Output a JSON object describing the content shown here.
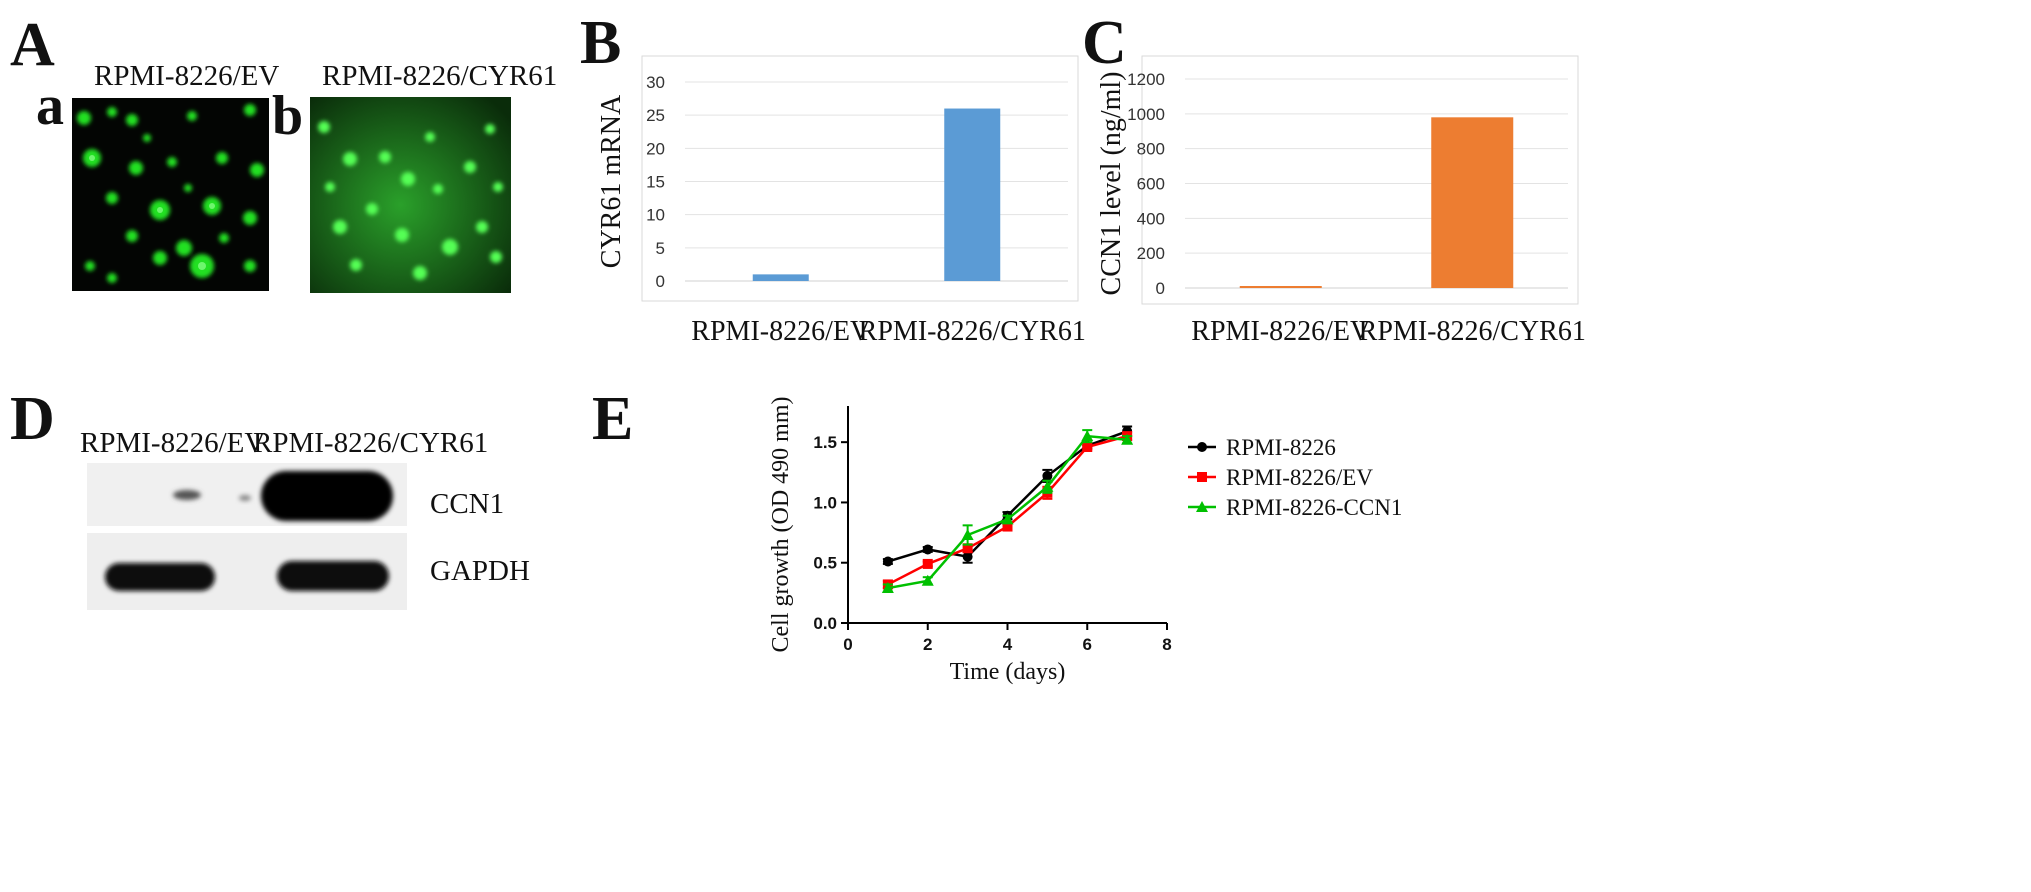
{
  "panels": {
    "A": {
      "letter": "A",
      "sub_a": {
        "letter": "a",
        "caption": "RPMI-8226/EV"
      },
      "sub_b": {
        "letter": "b",
        "caption": "RPMI-8226/CYR61"
      }
    },
    "B": {
      "letter": "B"
    },
    "C": {
      "letter": "C"
    },
    "D": {
      "letter": "D",
      "lane_labels": [
        "RPMI-8226/EV",
        "RPMI-8226/CYR61"
      ],
      "band_labels": [
        "CCN1",
        "GAPDH"
      ]
    },
    "E": {
      "letter": "E"
    }
  },
  "chart_data": [
    {
      "id": "B",
      "type": "bar",
      "categories": [
        "RPMI-8226/EV",
        "RPMI-8226/CYR61"
      ],
      "values": [
        1,
        26
      ],
      "ylabel": "CYR61 mRNA",
      "ylim": [
        0,
        30
      ],
      "yticks": [
        0,
        5,
        10,
        15,
        20,
        25,
        30
      ],
      "grid": true,
      "color": "#5b9bd5"
    },
    {
      "id": "C",
      "type": "bar",
      "categories": [
        "RPMI-8226/EV",
        "RPMI-8226/CYR61"
      ],
      "values": [
        10,
        980
      ],
      "ylabel": "CCN1 level (ng/ml)",
      "ylim": [
        0,
        1200
      ],
      "yticks": [
        0,
        200,
        400,
        600,
        800,
        1000,
        1200
      ],
      "grid": true,
      "color": "#ed7d31"
    },
    {
      "id": "E",
      "type": "line",
      "xlabel": "Time (days)",
      "ylabel": "Cell growth (OD 490 mm)",
      "xlim": [
        0,
        8
      ],
      "ylim": [
        0,
        1.8
      ],
      "xticks": [
        0,
        2,
        4,
        6,
        8
      ],
      "yticks": [
        "0.0",
        "0.5",
        "1.0",
        "1.5"
      ],
      "legend_position": "right",
      "series": [
        {
          "name": "RPMI-8226",
          "color": "#000000",
          "marker": "circle",
          "x": [
            1,
            2,
            3,
            4,
            5,
            6,
            7
          ],
          "y": [
            0.51,
            0.61,
            0.55,
            0.89,
            1.22,
            1.47,
            1.59
          ],
          "err": [
            0.02,
            0.02,
            0.05,
            0.03,
            0.05,
            0.02,
            0.04
          ]
        },
        {
          "name": "RPMI-8226/EV",
          "color": "#ff0000",
          "marker": "square",
          "x": [
            1,
            2,
            3,
            4,
            5,
            6,
            7
          ],
          "y": [
            0.32,
            0.49,
            0.62,
            0.8,
            1.08,
            1.46,
            1.55
          ],
          "err": [
            0.03,
            0.02,
            0.03,
            0.03,
            0.05,
            0.02,
            0.03
          ]
        },
        {
          "name": "RPMI-8226-CCN1",
          "color": "#00c000",
          "marker": "triangle",
          "x": [
            1,
            2,
            3,
            4,
            5,
            6,
            7
          ],
          "y": [
            0.29,
            0.35,
            0.73,
            0.86,
            1.13,
            1.55,
            1.52
          ],
          "err": [
            0.03,
            0.03,
            0.08,
            0.03,
            0.05,
            0.05,
            0.03
          ]
        }
      ]
    }
  ]
}
